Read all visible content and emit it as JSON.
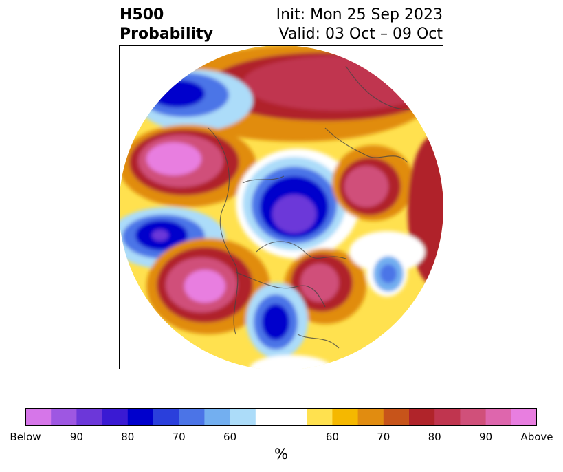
{
  "title": {
    "variable": "H500",
    "product": "Probability",
    "init": "Init: Mon 25 Sep 2023",
    "valid": "Valid: 03 Oct – 09 Oct"
  },
  "map": {
    "projection": "north-polar-stereographic",
    "features": [
      "coastlines",
      "country-borders",
      "state-borders"
    ]
  },
  "colorbar": {
    "unit": "%",
    "colors": [
      "#d676e9",
      "#9e57e2",
      "#6c37d9",
      "#3a1ad3",
      "#0000cc",
      "#2a3fdc",
      "#4b74e7",
      "#73aff0",
      "#acdcf9",
      "#ffffff",
      "#ffe14f",
      "#f5b800",
      "#e18c10",
      "#c7541a",
      "#b0242a",
      "#c0354f",
      "#d0507a",
      "#de66ad",
      "#e87ee0"
    ],
    "tick_labels": [
      "Below",
      "90",
      "80",
      "70",
      "60",
      "60",
      "70",
      "80",
      "90",
      "Above"
    ]
  },
  "legend_colors": {
    "below_strong": "#6c37d9",
    "below_mid": "#0000cc",
    "below_weak": "#73aff0",
    "above_weak": "#ffe14f",
    "above_mid": "#e18c10",
    "above_strong": "#c0354f",
    "above_max": "#e87ee0"
  }
}
